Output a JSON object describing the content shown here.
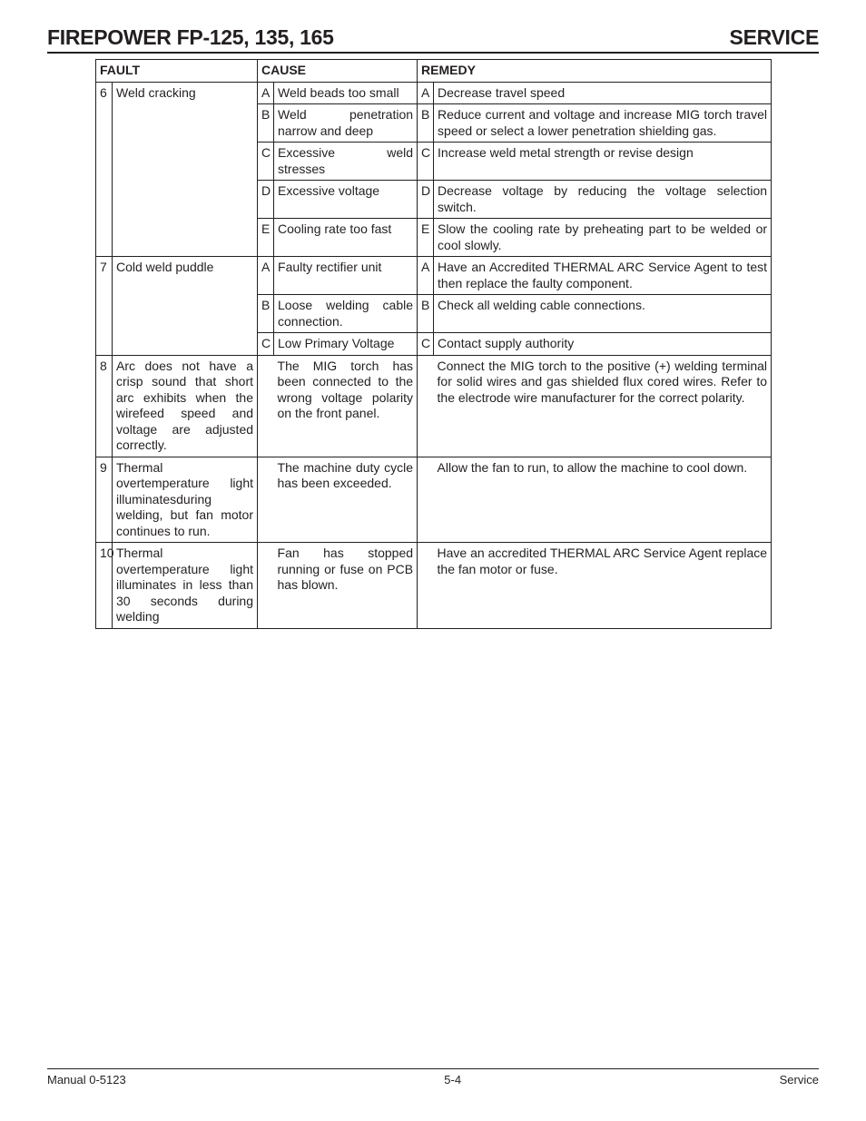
{
  "header": {
    "left": "FIREPOWER FP-125, 135, 165",
    "right": "SERVICE"
  },
  "table": {
    "headers": {
      "fault": "FAULT",
      "cause": "CAUSE",
      "remedy": "REMEDY"
    },
    "rows": [
      {
        "num": "6",
        "fault": "Weld cracking",
        "items": [
          {
            "l1": "A",
            "cause": "Weld beads too small",
            "l2": "A",
            "remedy": "Decrease travel speed"
          },
          {
            "l1": "B",
            "cause": "Weld penetration narrow and deep",
            "l2": "B",
            "remedy": "Reduce current and voltage and increase MIG torch travel speed or select a lower penetration shielding gas."
          },
          {
            "l1": "C",
            "cause": "Excessive weld stresses",
            "l2": "C",
            "remedy": "Increase weld metal strength or revise design"
          },
          {
            "l1": "D",
            "cause": "Excessive voltage",
            "l2": "D",
            "remedy": "Decrease voltage by reducing the voltage selection switch."
          },
          {
            "l1": "E",
            "cause": "Cooling rate too fast",
            "l2": "E",
            "remedy": "Slow the cooling rate by preheating part to be welded or cool slowly."
          }
        ]
      },
      {
        "num": "7",
        "fault": "Cold weld puddle",
        "items": [
          {
            "l1": "A",
            "cause": "Faulty rectifier unit",
            "l2": "A",
            "remedy": "Have an Accredited THERMAL ARC Service Agent to test then replace the faulty component."
          },
          {
            "l1": "B",
            "cause": "Loose welding cable connection.",
            "l2": "B",
            "remedy": "Check all welding cable connections."
          },
          {
            "l1": "C",
            "cause": "Low Primary Voltage",
            "l2": "C",
            "remedy": "Contact supply authority"
          }
        ]
      },
      {
        "num": "8",
        "fault": "Arc does not have a crisp sound that short arc exhibits when the wirefeed speed and voltage are adjusted correctly.",
        "items": [
          {
            "l1": "",
            "cause": "The MIG torch has been connected to the wrong voltage polarity on the front panel.",
            "l2": "",
            "remedy": "Connect the MIG torch to the positive (+) welding terminal for solid wires and gas shielded flux cored wires. Refer to the electrode wire manufacturer for the correct polarity."
          }
        ]
      },
      {
        "num": "9",
        "fault": "Thermal overtemperature light illuminatesduring welding, but fan motor continues to run.",
        "items": [
          {
            "l1": "",
            "cause": "The machine duty cycle has been exceeded.",
            "l2": "",
            "remedy": "Allow the fan to run, to allow the machine to cool down."
          }
        ]
      },
      {
        "num": "10",
        "fault": "Thermal overtemperature light illuminates in less than 30 seconds during welding",
        "items": [
          {
            "l1": "",
            "cause": "Fan has stopped running or fuse on PCB has blown.",
            "l2": "",
            "remedy": "Have an accredited THERMAL ARC Service Agent replace the fan motor or fuse."
          }
        ]
      }
    ]
  },
  "footer": {
    "left": "Manual 0-5123",
    "center": "5-4",
    "right": "Service"
  }
}
